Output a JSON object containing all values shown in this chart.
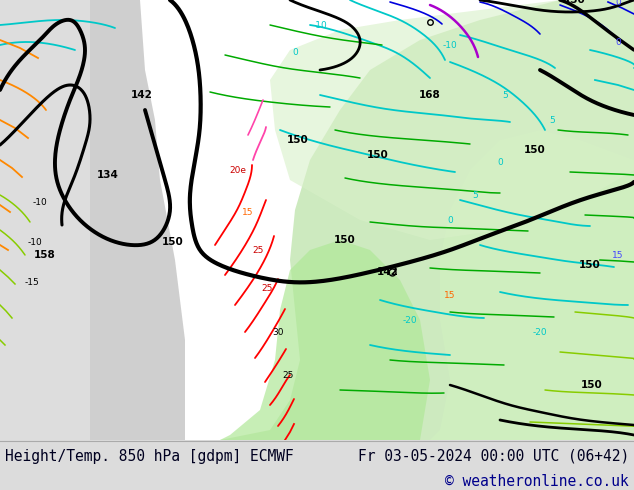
{
  "title_left": "Height/Temp. 850 hPa [gdpm] ECMWF",
  "title_right": "Fr 03-05-2024 00:00 UTC (06+42)",
  "copyright": "© weatheronline.co.uk",
  "bg_color": "#ffffff",
  "footer_bg": "#dcdcdc",
  "footer_text_color": "#000020",
  "copyright_color": "#00008b",
  "font_size_footer": 10.5,
  "font_size_copyright": 10.5
}
